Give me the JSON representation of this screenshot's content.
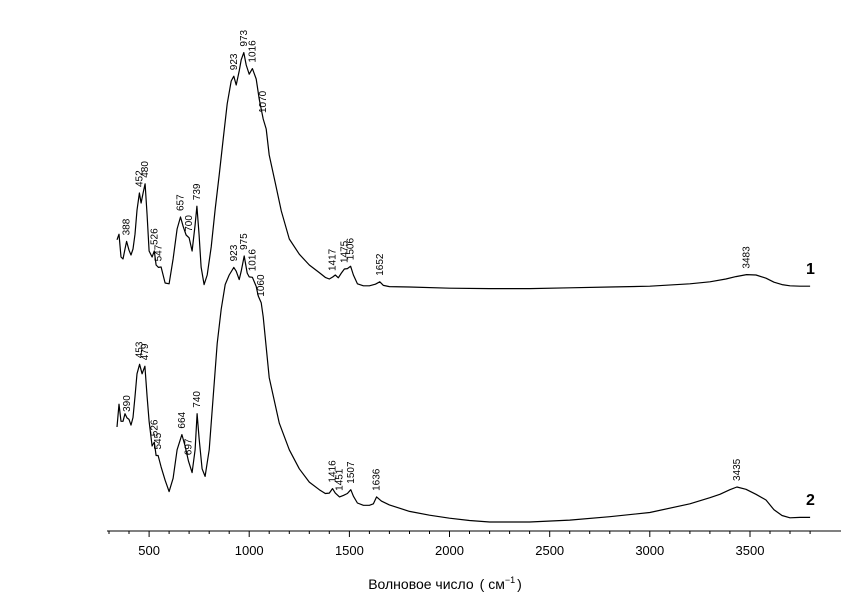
{
  "chart_data": {
    "type": "line",
    "title": "",
    "xlabel": "Волновое число",
    "xunit_base": "( см",
    "xunit_sup": "−1",
    "xunit_close": ")",
    "ylabel": "",
    "xlim": [
      290,
      3850
    ],
    "ylim": [
      0,
      100
    ],
    "x_ticks": [
      500,
      1000,
      1500,
      2000,
      2500,
      3000,
      3500
    ],
    "x_tick_labels": [
      "500",
      "1000",
      "1500",
      "2000",
      "2500",
      "3000",
      "3500"
    ],
    "series": [
      {
        "name": "1",
        "x": [
          340,
          350,
          360,
          370,
          380,
          388,
          400,
          410,
          420,
          430,
          440,
          452,
          460,
          470,
          480,
          490,
          500,
          515,
          526,
          535,
          547,
          560,
          580,
          600,
          620,
          640,
          657,
          670,
          685,
          700,
          715,
          730,
          739,
          750,
          760,
          775,
          790,
          810,
          830,
          850,
          870,
          890,
          910,
          923,
          935,
          950,
          960,
          973,
          985,
          1000,
          1016,
          1035,
          1050,
          1070,
          1085,
          1100,
          1130,
          1160,
          1200,
          1250,
          1300,
          1350,
          1380,
          1400,
          1417,
          1430,
          1445,
          1460,
          1475,
          1490,
          1506,
          1520,
          1540,
          1570,
          1600,
          1630,
          1652,
          1670,
          1700,
          1800,
          2000,
          2200,
          2400,
          2600,
          2800,
          3000,
          3200,
          3300,
          3380,
          3430,
          3483,
          3530,
          3580,
          3620,
          3660,
          3700,
          3750,
          3800
        ],
        "y": [
          46.8,
          48.2,
          42.5,
          42.0,
          44.5,
          46.4,
          44.2,
          43.0,
          44.5,
          48.2,
          54.2,
          58.5,
          56.0,
          58.5,
          60.8,
          53.0,
          44.0,
          42.5,
          44.0,
          40.5,
          39.9,
          40.0,
          36.0,
          35.8,
          42.0,
          49.5,
          52.5,
          50.2,
          48.0,
          47.3,
          44.0,
          50.5,
          55.2,
          48.0,
          40.0,
          35.6,
          38.0,
          45.0,
          54.5,
          63.0,
          72.0,
          80.8,
          86.5,
          87.7,
          85.5,
          89.0,
          91.8,
          93.6,
          90.5,
          88.2,
          89.6,
          87.0,
          82.0,
          77.0,
          74.5,
          68.0,
          61.0,
          54.0,
          47.0,
          43.2,
          40.5,
          38.6,
          37.4,
          37.0,
          37.5,
          38.0,
          37.3,
          38.5,
          39.5,
          39.6,
          40.2,
          38.0,
          35.8,
          35.3,
          35.3,
          35.7,
          36.3,
          35.4,
          35.1,
          35.0,
          34.7,
          34.6,
          34.6,
          34.8,
          35.0,
          35.2,
          35.8,
          36.3,
          37.0,
          37.6,
          38.1,
          38.0,
          37.2,
          36.2,
          35.6,
          35.3,
          35.2,
          35.2
        ]
      },
      {
        "name": "2",
        "x": [
          340,
          350,
          360,
          370,
          380,
          390,
          400,
          410,
          420,
          430,
          440,
          453,
          465,
          479,
          490,
          500,
          515,
          526,
          535,
          545,
          560,
          580,
          600,
          620,
          640,
          664,
          680,
          697,
          715,
          730,
          740,
          750,
          765,
          780,
          800,
          820,
          840,
          860,
          880,
          900,
          923,
          935,
          950,
          960,
          975,
          990,
          1000,
          1016,
          1035,
          1045,
          1060,
          1070,
          1085,
          1100,
          1150,
          1200,
          1250,
          1300,
          1350,
          1380,
          1400,
          1416,
          1430,
          1451,
          1470,
          1490,
          1507,
          1520,
          1540,
          1570,
          1600,
          1620,
          1636,
          1660,
          1700,
          1800,
          1900,
          2000,
          2100,
          2200,
          2300,
          2400,
          2600,
          2800,
          3000,
          3200,
          3300,
          3350,
          3400,
          3435,
          3480,
          3530,
          3580,
          3620,
          3660,
          3700,
          3750,
          3800
        ],
        "y": [
          25.0,
          31.0,
          26.5,
          26.5,
          28.5,
          27.4,
          27.0,
          25.5,
          27.5,
          33.0,
          39.0,
          41.5,
          39.0,
          41.0,
          33.0,
          26.5,
          20.0,
          21.0,
          17.5,
          17.5,
          14.5,
          11.0,
          8.0,
          11.5,
          19.0,
          23.0,
          20.0,
          16.0,
          13.0,
          19.0,
          28.5,
          22.0,
          14.0,
          12.0,
          19.0,
          33.0,
          47.0,
          56.0,
          62.5,
          65.0,
          67.0,
          66.0,
          63.8,
          66.0,
          70.0,
          65.5,
          64.5,
          64.4,
          62.0,
          59.5,
          57.7,
          54.0,
          46.0,
          38.0,
          26.0,
          19.0,
          14.0,
          10.5,
          8.5,
          7.5,
          7.6,
          8.8,
          7.6,
          6.6,
          7.0,
          7.5,
          8.5,
          6.8,
          5.0,
          4.4,
          4.4,
          4.8,
          6.6,
          5.5,
          4.5,
          2.8,
          1.8,
          1.0,
          0.4,
          0.0,
          0.0,
          0.0,
          0.5,
          1.4,
          2.5,
          4.8,
          6.4,
          7.3,
          8.5,
          9.2,
          8.6,
          7.3,
          5.8,
          3.2,
          1.7,
          1.1,
          1.2,
          1.2
        ]
      }
    ],
    "annotations": [
      {
        "text": "1",
        "series": "1"
      },
      {
        "text": "2",
        "series": "2"
      }
    ],
    "peak_labels": {
      "series1": [
        {
          "x": 388,
          "text": "388"
        },
        {
          "x": 452,
          "text": "452"
        },
        {
          "x": 480,
          "text": "480"
        },
        {
          "x": 526,
          "text": "526"
        },
        {
          "x": 547,
          "text": "547"
        },
        {
          "x": 657,
          "text": "657"
        },
        {
          "x": 700,
          "text": "700"
        },
        {
          "x": 739,
          "text": "739"
        },
        {
          "x": 923,
          "text": "923"
        },
        {
          "x": 973,
          "text": "973"
        },
        {
          "x": 1016,
          "text": "1016"
        },
        {
          "x": 1070,
          "text": "1070"
        },
        {
          "x": 1417,
          "text": "1417"
        },
        {
          "x": 1475,
          "text": "1475"
        },
        {
          "x": 1506,
          "text": "1506"
        },
        {
          "x": 1652,
          "text": "1652"
        },
        {
          "x": 3483,
          "text": "3483"
        }
      ],
      "series2": [
        {
          "x": 390,
          "text": "390"
        },
        {
          "x": 453,
          "text": "453"
        },
        {
          "x": 479,
          "text": "479"
        },
        {
          "x": 526,
          "text": "526"
        },
        {
          "x": 545,
          "text": "545"
        },
        {
          "x": 664,
          "text": "664"
        },
        {
          "x": 697,
          "text": "697"
        },
        {
          "x": 740,
          "text": "740"
        },
        {
          "x": 923,
          "text": "923"
        },
        {
          "x": 975,
          "text": "975"
        },
        {
          "x": 1016,
          "text": "1016"
        },
        {
          "x": 1060,
          "text": "1060"
        },
        {
          "x": 1416,
          "text": "1416"
        },
        {
          "x": 1451,
          "text": "1451"
        },
        {
          "x": 1507,
          "text": "1507"
        },
        {
          "x": 1636,
          "text": "1636"
        },
        {
          "x": 3435,
          "text": "3435"
        }
      ]
    },
    "grid": false,
    "legend": "none"
  }
}
